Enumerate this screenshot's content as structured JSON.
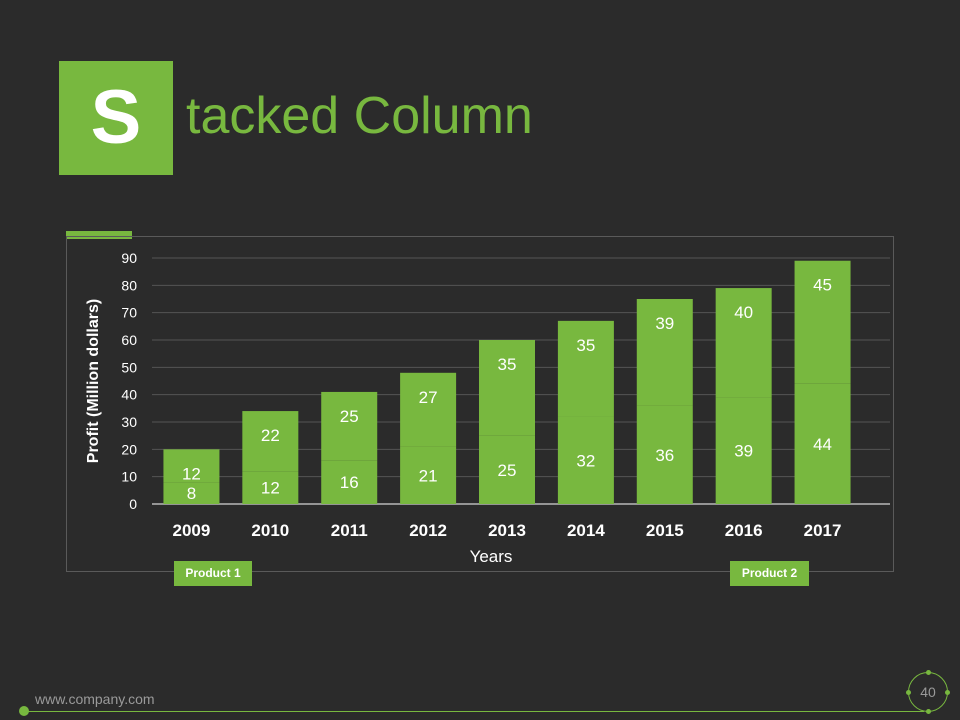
{
  "slide": {
    "title_initial": "S",
    "title_rest": "tacked Column",
    "footer_url": "www.company.com",
    "page_number": "40"
  },
  "legend": {
    "product1": "Product 1",
    "product2": "Product 2"
  },
  "colors": {
    "accent": "#78b83f",
    "background": "#2b2b2b",
    "grid": "#555555",
    "text": "#ffffff",
    "muted": "#9a9a9a"
  },
  "chart_data": {
    "type": "bar",
    "stacked": true,
    "categories": [
      "2009",
      "2010",
      "2011",
      "2012",
      "2013",
      "2014",
      "2015",
      "2016",
      "2017"
    ],
    "series": [
      {
        "name": "Product 1",
        "values": [
          8,
          12,
          16,
          21,
          25,
          32,
          36,
          39,
          44
        ]
      },
      {
        "name": "Product 2",
        "values": [
          12,
          22,
          25,
          27,
          35,
          35,
          39,
          40,
          45
        ]
      }
    ],
    "xlabel": "Years",
    "ylabel": "Profit  (Million dollars)",
    "ylim": [
      0,
      90
    ],
    "yticks": [
      "0",
      "10",
      "20",
      "30",
      "40",
      "50",
      "60",
      "70",
      "80",
      "90"
    ],
    "grid": true,
    "legend": "bottom"
  }
}
